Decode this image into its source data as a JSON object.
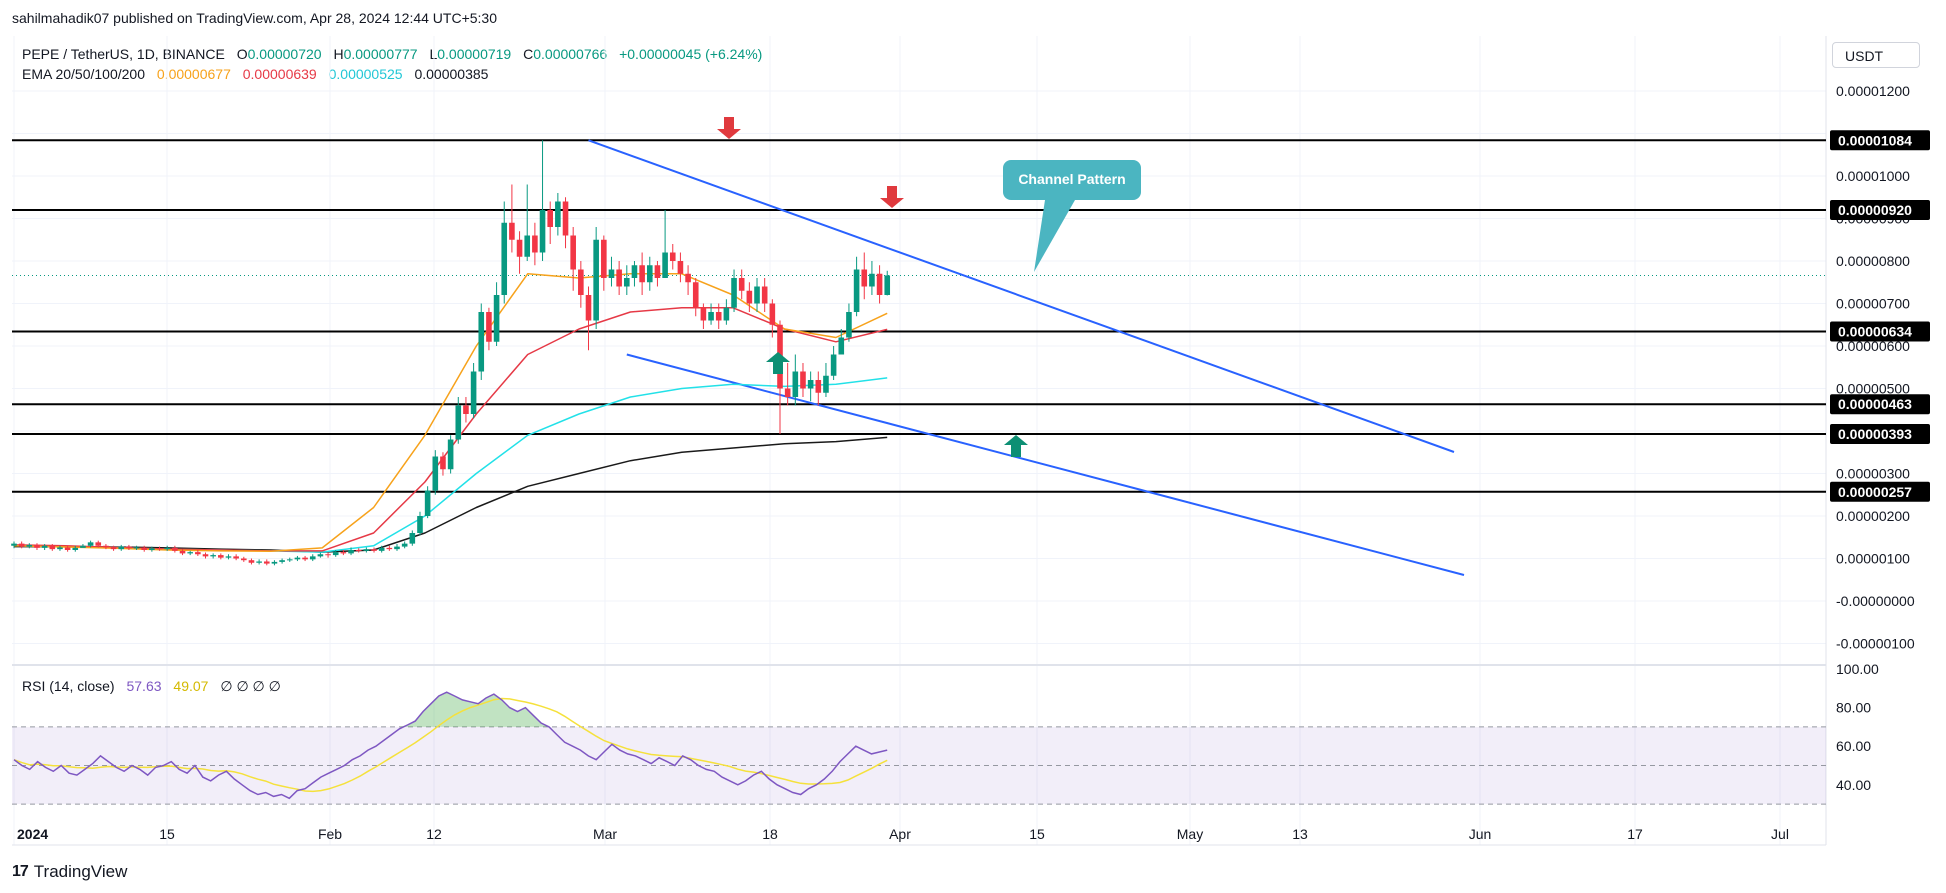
{
  "header": {
    "published": "sahilmahadik07 published on TradingView.com, Apr 28, 2024 12:44 UTC+5:30"
  },
  "legend": {
    "symbol": "PEPE / TetherUS, 1D, BINANCE",
    "o_label": "O",
    "o_value": "0.00000720",
    "h_label": "H",
    "h_value": "0.00000777",
    "l_label": "L",
    "l_value": "0.00000719",
    "c_label": "C",
    "c_value": "0.00000766",
    "change": "+0.00000045 (+6.24%)",
    "ema_label": "EMA 20/50/100/200",
    "ema20": "0.00000677",
    "ema50": "0.00000639",
    "ema100": "0.00000525",
    "ema200": "0.00000385",
    "rsi_label": "RSI (14, close)",
    "rsi_value": "57.63",
    "rsi_ma": "49.07",
    "rsi_extra": "∅  ∅  ∅  ∅"
  },
  "currency": "USDT",
  "brand": {
    "icon": "tradingview-logo",
    "name": "TradingView"
  },
  "annotation": {
    "text": "Channel Pattern"
  },
  "colors": {
    "up": "#089981",
    "down": "#f23645",
    "ema20": "#f7a21b",
    "ema50": "#e63946",
    "ema100": "#22e1e8",
    "ema200": "#1a1a1a",
    "channel": "#2962ff",
    "callout": "#4bb5c1",
    "rsi": "#7e57c2",
    "rsi_ma": "#f5e13c"
  },
  "chart_data": {
    "type": "candlestick",
    "y_ticks": [
      "0.00001200",
      "0.00001000",
      "0.00000900",
      "0.00000800",
      "0.00000700",
      "0.00000600",
      "0.00000500",
      "0.00000300",
      "0.00000200",
      "0.00000100",
      "-0.00000000",
      "-0.00000100"
    ],
    "level_lines": [
      "0.00001084",
      "0.00000920",
      "0.00000634",
      "0.00000463",
      "0.00000393",
      "0.00000257"
    ],
    "x_ticks": [
      "2024",
      "15",
      "Feb",
      "12",
      "Mar",
      "18",
      "Apr",
      "15",
      "May",
      "13",
      "Jun",
      "17",
      "Jul"
    ],
    "last_close": 7.66e-06,
    "ylim": [
      -1.4e-06,
      1.26e-05
    ],
    "candles_oc": [
      [
        1.3,
        1.35
      ],
      [
        1.35,
        1.28
      ],
      [
        1.28,
        1.32
      ],
      [
        1.32,
        1.25
      ],
      [
        1.25,
        1.3
      ],
      [
        1.3,
        1.22
      ],
      [
        1.22,
        1.26
      ],
      [
        1.26,
        1.2
      ],
      [
        1.2,
        1.25
      ],
      [
        1.25,
        1.3
      ],
      [
        1.3,
        1.38
      ],
      [
        1.38,
        1.3
      ],
      [
        1.3,
        1.26
      ],
      [
        1.26,
        1.22
      ],
      [
        1.22,
        1.28
      ],
      [
        1.28,
        1.24
      ],
      [
        1.24,
        1.26
      ],
      [
        1.26,
        1.2
      ],
      [
        1.2,
        1.24
      ],
      [
        1.24,
        1.22
      ],
      [
        1.22,
        1.25
      ],
      [
        1.25,
        1.18
      ],
      [
        1.18,
        1.12
      ],
      [
        1.12,
        1.15
      ],
      [
        1.15,
        1.1
      ],
      [
        1.1,
        1.05
      ],
      [
        1.05,
        1.08
      ],
      [
        1.08,
        1.02
      ],
      [
        1.02,
        1.05
      ],
      [
        1.05,
        1.0
      ],
      [
        1.0,
        0.96
      ],
      [
        0.96,
        0.9
      ],
      [
        0.9,
        0.93
      ],
      [
        0.93,
        0.88
      ],
      [
        0.88,
        0.92
      ],
      [
        0.92,
        0.96
      ],
      [
        0.96,
        0.98
      ],
      [
        0.98,
        1.02
      ],
      [
        1.02,
        0.98
      ],
      [
        0.98,
        1.05
      ],
      [
        1.05,
        1.1
      ],
      [
        1.1,
        1.08
      ],
      [
        1.08,
        1.15
      ],
      [
        1.15,
        1.12
      ],
      [
        1.12,
        1.2
      ],
      [
        1.2,
        1.18
      ],
      [
        1.18,
        1.22
      ],
      [
        1.22,
        1.18
      ],
      [
        1.18,
        1.25
      ],
      [
        1.25,
        1.22
      ],
      [
        1.22,
        1.28
      ],
      [
        1.28,
        1.35
      ],
      [
        1.35,
        1.6
      ],
      [
        1.6,
        2.0
      ],
      [
        2.0,
        2.6
      ],
      [
        2.6,
        3.4
      ],
      [
        3.4,
        3.1
      ],
      [
        3.1,
        3.8
      ],
      [
        3.8,
        4.6
      ],
      [
        4.6,
        4.4
      ],
      [
        4.4,
        5.4
      ],
      [
        5.4,
        6.8
      ],
      [
        6.8,
        6.1
      ],
      [
        6.1,
        7.2
      ],
      [
        7.2,
        8.9
      ],
      [
        8.9,
        8.5
      ],
      [
        8.5,
        8.1
      ],
      [
        8.1,
        8.6
      ],
      [
        8.6,
        8.2
      ],
      [
        8.2,
        9.2
      ],
      [
        9.2,
        8.8
      ],
      [
        8.8,
        9.4
      ],
      [
        9.4,
        8.6
      ],
      [
        8.6,
        7.8
      ],
      [
        7.8,
        7.2
      ],
      [
        7.2,
        6.6
      ],
      [
        6.6,
        8.5
      ],
      [
        8.5,
        7.6
      ],
      [
        7.6,
        7.8
      ],
      [
        7.8,
        7.4
      ],
      [
        7.4,
        7.6
      ],
      [
        7.6,
        7.9
      ],
      [
        7.9,
        7.5
      ],
      [
        7.5,
        7.9
      ],
      [
        7.9,
        7.6
      ],
      [
        7.6,
        8.2
      ],
      [
        8.2,
        8.0
      ],
      [
        8.0,
        7.7
      ],
      [
        7.7,
        7.5
      ],
      [
        7.5,
        6.9
      ],
      [
        6.9,
        6.6
      ],
      [
        6.6,
        6.8
      ],
      [
        6.8,
        6.6
      ],
      [
        6.6,
        6.9
      ],
      [
        6.9,
        7.6
      ],
      [
        7.6,
        7.3
      ],
      [
        7.3,
        7.0
      ],
      [
        7.0,
        7.4
      ],
      [
        7.4,
        7.0
      ],
      [
        7.0,
        6.5
      ],
      [
        6.5,
        5.0
      ],
      [
        5.0,
        4.8
      ],
      [
        4.8,
        5.4
      ],
      [
        5.4,
        5.0
      ],
      [
        5.0,
        5.2
      ],
      [
        5.2,
        4.9
      ],
      [
        4.9,
        5.3
      ],
      [
        5.3,
        5.8
      ],
      [
        5.8,
        6.2
      ],
      [
        6.2,
        6.8
      ],
      [
        6.8,
        7.8
      ],
      [
        7.8,
        7.4
      ],
      [
        7.4,
        7.7
      ],
      [
        7.7,
        7.2
      ],
      [
        7.2,
        7.66
      ]
    ],
    "candle_wicks_hl": [
      [
        1.4,
        1.24
      ],
      [
        1.4,
        1.24
      ],
      [
        1.36,
        1.24
      ],
      [
        1.36,
        1.2
      ],
      [
        1.34,
        1.2
      ],
      [
        1.34,
        1.18
      ],
      [
        1.3,
        1.18
      ],
      [
        1.3,
        1.16
      ],
      [
        1.3,
        1.16
      ],
      [
        1.34,
        1.26
      ],
      [
        1.42,
        1.26
      ],
      [
        1.42,
        1.26
      ],
      [
        1.34,
        1.22
      ],
      [
        1.3,
        1.18
      ],
      [
        1.32,
        1.18
      ],
      [
        1.32,
        1.2
      ],
      [
        1.3,
        1.2
      ],
      [
        1.3,
        1.16
      ],
      [
        1.28,
        1.16
      ],
      [
        1.28,
        1.18
      ],
      [
        1.3,
        1.18
      ],
      [
        1.3,
        1.14
      ],
      [
        1.22,
        1.08
      ],
      [
        1.18,
        1.08
      ],
      [
        1.2,
        1.06
      ],
      [
        1.14,
        1.0
      ],
      [
        1.12,
        1.0
      ],
      [
        1.12,
        0.98
      ],
      [
        1.1,
        0.98
      ],
      [
        1.1,
        0.96
      ],
      [
        1.04,
        0.92
      ],
      [
        1.0,
        0.86
      ],
      [
        0.98,
        0.86
      ],
      [
        0.98,
        0.84
      ],
      [
        0.96,
        0.84
      ],
      [
        1.0,
        0.88
      ],
      [
        1.02,
        0.92
      ],
      [
        1.06,
        0.94
      ],
      [
        1.06,
        0.94
      ],
      [
        1.1,
        0.94
      ],
      [
        1.14,
        1.02
      ],
      [
        1.14,
        1.02
      ],
      [
        1.2,
        1.04
      ],
      [
        1.2,
        1.08
      ],
      [
        1.26,
        1.08
      ],
      [
        1.24,
        1.14
      ],
      [
        1.26,
        1.14
      ],
      [
        1.26,
        1.14
      ],
      [
        1.3,
        1.14
      ],
      [
        1.3,
        1.18
      ],
      [
        1.34,
        1.18
      ],
      [
        1.4,
        1.24
      ],
      [
        1.66,
        1.3
      ],
      [
        2.1,
        1.55
      ],
      [
        2.7,
        1.95
      ],
      [
        3.55,
        2.5
      ],
      [
        3.5,
        2.95
      ],
      [
        3.9,
        3.0
      ],
      [
        4.8,
        3.7
      ],
      [
        4.8,
        4.2
      ],
      [
        5.6,
        4.3
      ],
      [
        7.0,
        5.2
      ],
      [
        6.9,
        5.9
      ],
      [
        7.5,
        6.0
      ],
      [
        9.4,
        7.0
      ],
      [
        9.8,
        8.2
      ],
      [
        8.7,
        7.7
      ],
      [
        9.8,
        8.0
      ],
      [
        8.9,
        7.9
      ],
      [
        10.84,
        8.0
      ],
      [
        9.4,
        8.4
      ],
      [
        9.6,
        8.6
      ],
      [
        9.5,
        8.3
      ],
      [
        8.8,
        7.3
      ],
      [
        8.0,
        6.9
      ],
      [
        7.4,
        5.9
      ],
      [
        8.8,
        6.4
      ],
      [
        8.6,
        7.3
      ],
      [
        8.1,
        7.4
      ],
      [
        8.0,
        7.2
      ],
      [
        7.9,
        7.2
      ],
      [
        8.0,
        7.4
      ],
      [
        8.2,
        7.2
      ],
      [
        8.1,
        7.3
      ],
      [
        8.0,
        7.4
      ],
      [
        9.2,
        7.6
      ],
      [
        8.4,
        7.8
      ],
      [
        8.2,
        7.5
      ],
      [
        7.9,
        7.2
      ],
      [
        7.6,
        6.7
      ],
      [
        7.0,
        6.4
      ],
      [
        7.0,
        6.5
      ],
      [
        7.0,
        6.4
      ],
      [
        7.1,
        6.5
      ],
      [
        7.8,
        6.8
      ],
      [
        7.8,
        7.1
      ],
      [
        7.5,
        6.8
      ],
      [
        7.6,
        6.8
      ],
      [
        7.6,
        6.8
      ],
      [
        7.1,
        6.2
      ],
      [
        6.6,
        3.93
      ],
      [
        5.6,
        4.6
      ],
      [
        5.8,
        4.6
      ],
      [
        5.6,
        4.8
      ],
      [
        5.4,
        4.7
      ],
      [
        5.4,
        4.6
      ],
      [
        5.6,
        4.8
      ],
      [
        6.0,
        5.2
      ],
      [
        6.4,
        5.8
      ],
      [
        7.0,
        6.1
      ],
      [
        8.1,
        6.7
      ],
      [
        8.2,
        7.1
      ],
      [
        8.0,
        7.2
      ],
      [
        7.9,
        7.0
      ],
      [
        7.77,
        7.19
      ]
    ],
    "ema20_path": [
      1.3,
      1.27,
      1.24,
      1.2,
      1.18,
      1.17,
      1.25,
      2.2,
      3.9,
      6.0,
      7.7,
      7.6,
      7.7,
      7.7,
      7.2,
      6.4,
      6.2,
      6.77
    ],
    "ema50_path": [
      1.32,
      1.3,
      1.26,
      1.22,
      1.2,
      1.18,
      1.18,
      1.6,
      2.8,
      4.4,
      5.8,
      6.4,
      6.8,
      6.9,
      6.9,
      6.4,
      6.1,
      6.39
    ],
    "ema100_path": [
      1.3,
      1.28,
      1.26,
      1.22,
      1.2,
      1.18,
      1.15,
      1.3,
      2.0,
      3.0,
      3.9,
      4.4,
      4.8,
      5.0,
      5.1,
      5.05,
      5.1,
      5.25
    ],
    "ema200_path": [
      1.28,
      1.28,
      1.27,
      1.25,
      1.22,
      1.2,
      1.15,
      1.2,
      1.6,
      2.2,
      2.7,
      3.0,
      3.3,
      3.5,
      3.6,
      3.7,
      3.75,
      3.85
    ],
    "channel_upper": [
      [
        10.84,
        0.0
      ],
      [
        3.4,
        1.0
      ]
    ],
    "channel_lower": [
      [
        5.8,
        0.0
      ],
      [
        -0.5,
        1.0
      ]
    ],
    "rsi_ylim": [
      20,
      100
    ],
    "rsi_ticks": [
      "100.00",
      "80.00",
      "60.00",
      "40.00"
    ],
    "rsi_bands": [
      70,
      50,
      30
    ],
    "rsi_values": [
      53,
      50,
      48,
      52,
      49,
      47,
      50,
      46,
      45,
      48,
      51,
      55,
      52,
      49,
      47,
      50,
      48,
      45,
      49,
      50,
      52,
      48,
      46,
      50,
      44,
      42,
      45,
      47,
      43,
      40,
      37,
      35,
      36,
      34,
      35,
      33,
      37,
      38,
      41,
      44,
      46,
      48,
      50,
      53,
      55,
      58,
      60,
      63,
      66,
      69,
      71,
      73,
      78,
      82,
      86,
      88,
      86,
      84,
      83,
      82,
      85,
      87,
      84,
      80,
      78,
      80,
      76,
      72,
      70,
      66,
      62,
      60,
      58,
      55,
      53,
      57,
      61,
      58,
      56,
      55,
      53,
      51,
      54,
      52,
      50,
      55,
      53,
      50,
      48,
      47,
      44,
      42,
      40,
      42,
      45,
      47,
      43,
      40,
      38,
      36,
      35,
      38,
      40,
      43,
      47,
      52,
      56,
      60,
      58,
      56,
      57,
      58
    ]
  }
}
